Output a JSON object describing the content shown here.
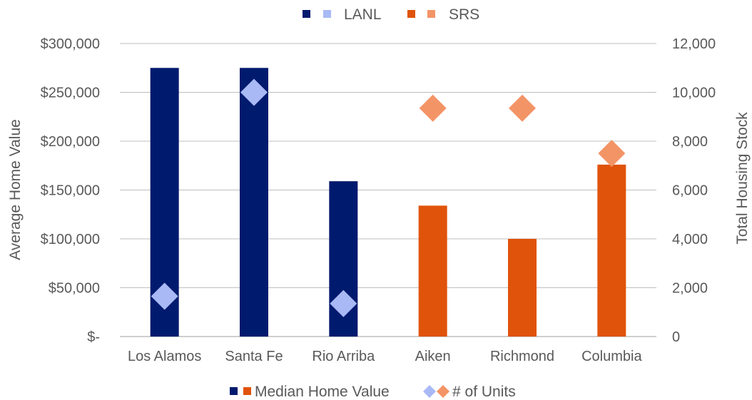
{
  "chart_data": {
    "type": "bar",
    "categories": [
      "Los Alamos",
      "Santa Fe",
      "Rio Arriba",
      "Aiken",
      "Richmond",
      "Columbia"
    ],
    "groups": [
      "LANL",
      "LANL",
      "LANL",
      "SRS",
      "SRS",
      "SRS"
    ],
    "series": [
      {
        "name": "Median Home Value",
        "type": "bar",
        "axis": "left",
        "values": [
          275000,
          275000,
          159000,
          134000,
          100000,
          176000
        ]
      },
      {
        "name": "# of Units",
        "type": "scatter",
        "axis": "right",
        "marker": "diamond",
        "values": [
          1650,
          10000,
          1350,
          9350,
          9350,
          7500
        ]
      }
    ],
    "ylabel": "Average Home Value",
    "y2label": "Total Housing Stock",
    "ylim": [
      0,
      300000
    ],
    "y2lim": [
      0,
      12000
    ],
    "yticks": [
      "$-",
      "$50,000",
      "$100,000",
      "$150,000",
      "$200,000",
      "$250,000",
      "$300,000"
    ],
    "y2ticks": [
      "0",
      "2,000",
      "4,000",
      "6,000",
      "8,000",
      "10,000",
      "12,000"
    ],
    "grid": true,
    "top_legend": {
      "placement": "top-center",
      "entries": [
        "LANL",
        "SRS"
      ]
    },
    "bottom_legend": {
      "placement": "bottom-center",
      "entries": [
        "Median Home Value",
        "# of Units"
      ]
    },
    "colors": {
      "LANL_bar": "#001a6e",
      "LANL_marker": "#a9b9f5",
      "SRS_bar": "#e0530b",
      "SRS_marker": "#f39466",
      "grid": "#bfbfbf",
      "text": "#595959"
    }
  }
}
